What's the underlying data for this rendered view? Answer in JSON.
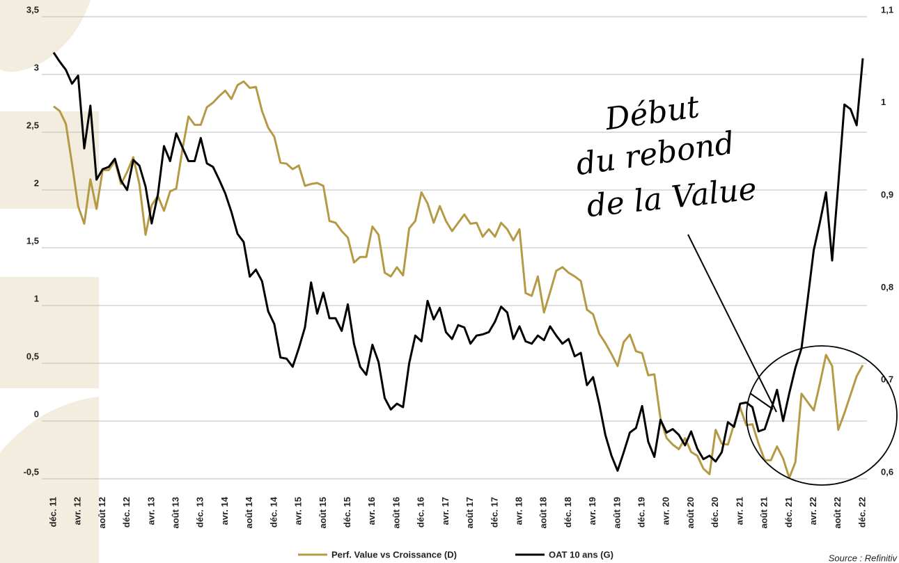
{
  "chart_data": {
    "type": "line",
    "categories": [
      "déc. 11",
      null,
      null,
      null,
      "avr. 12",
      null,
      null,
      null,
      "août 12",
      null,
      null,
      null,
      "déc. 12",
      null,
      null,
      null,
      "avr. 13",
      null,
      null,
      null,
      "août 13",
      null,
      null,
      null,
      "déc. 13",
      null,
      null,
      null,
      "avr. 14",
      null,
      null,
      null,
      "août 14",
      null,
      null,
      null,
      "déc. 14",
      null,
      null,
      null,
      "avr. 15",
      null,
      null,
      null,
      "août 15",
      null,
      null,
      null,
      "déc. 15",
      null,
      null,
      null,
      "avr. 16",
      null,
      null,
      null,
      "août 16",
      null,
      null,
      null,
      "déc. 16",
      null,
      null,
      null,
      "avr. 17",
      null,
      null,
      null,
      "août 17",
      null,
      null,
      null,
      "déc. 17",
      null,
      null,
      null,
      "avr. 18",
      null,
      null,
      null,
      "août 18",
      null,
      null,
      null,
      "déc. 18",
      null,
      null,
      null,
      "avr. 19",
      null,
      null,
      null,
      "août 19",
      null,
      null,
      null,
      "déc. 19",
      null,
      null,
      null,
      "avr. 20",
      null,
      null,
      null,
      "août 20",
      null,
      null,
      null,
      "déc. 20",
      null,
      null,
      null,
      "avr. 21",
      null,
      null,
      null,
      "août 21",
      null,
      null,
      null,
      "déc. 21",
      null,
      null,
      null,
      "avr. 22",
      null,
      null,
      null,
      "août 22",
      null,
      null,
      null,
      "déc. 22"
    ],
    "series": [
      {
        "name": "Perf. Value vs Croissance (D)",
        "color": "#b59a45",
        "axis": "y2",
        "values": [
          1.003,
          0.998,
          0.984,
          0.941,
          0.895,
          0.876,
          0.924,
          0.892,
          0.934,
          0.934,
          0.944,
          0.919,
          0.932,
          0.948,
          0.919,
          0.864,
          0.896,
          0.906,
          0.89,
          0.911,
          0.914,
          0.956,
          0.992,
          0.983,
          0.983,
          1.002,
          1.007,
          1.014,
          1.02,
          1.011,
          1.026,
          1.03,
          1.023,
          1.024,
          0.998,
          0.98,
          0.97,
          0.942,
          0.941,
          0.935,
          0.939,
          0.917,
          0.919,
          0.92,
          0.917,
          0.879,
          0.877,
          0.868,
          0.861,
          0.834,
          0.84,
          0.84,
          0.873,
          0.864,
          0.823,
          0.819,
          0.829,
          0.82,
          0.871,
          0.879,
          0.91,
          0.898,
          0.877,
          0.895,
          0.879,
          0.868,
          0.877,
          0.886,
          0.876,
          0.877,
          0.862,
          0.87,
          0.862,
          0.877,
          0.87,
          0.858,
          0.87,
          0.801,
          0.798,
          0.819,
          0.78,
          0.802,
          0.825,
          0.829,
          0.823,
          0.819,
          0.814,
          0.783,
          0.778,
          0.757,
          0.747,
          0.735,
          0.722,
          0.748,
          0.756,
          0.738,
          0.736,
          0.712,
          0.713,
          0.665,
          0.644,
          0.637,
          0.632,
          0.644,
          0.629,
          0.625,
          0.611,
          0.605,
          0.653,
          0.638,
          0.637,
          0.659,
          0.677,
          0.658,
          0.659,
          0.638,
          0.62,
          0.62,
          0.635,
          0.622,
          0.601,
          0.618,
          0.692,
          0.683,
          0.674,
          0.703,
          0.734,
          0.722,
          0.653,
          0.671,
          0.691,
          0.711,
          0.723
        ]
      },
      {
        "name": "OAT 10 ans (G)",
        "color": "#000000",
        "values": [
          3.19,
          3.11,
          3.04,
          2.92,
          2.99,
          2.36,
          2.73,
          2.09,
          2.18,
          2.2,
          2.27,
          2.08,
          2.0,
          2.26,
          2.21,
          2.03,
          1.71,
          1.96,
          2.38,
          2.25,
          2.49,
          2.37,
          2.25,
          2.25,
          2.45,
          2.23,
          2.2,
          2.09,
          1.97,
          1.81,
          1.62,
          1.55,
          1.25,
          1.31,
          1.21,
          0.95,
          0.84,
          0.55,
          0.54,
          0.47,
          0.63,
          0.81,
          1.2,
          0.93,
          1.11,
          0.89,
          0.89,
          0.78,
          1.01,
          0.67,
          0.47,
          0.4,
          0.66,
          0.51,
          0.2,
          0.1,
          0.15,
          0.12,
          0.5,
          0.74,
          0.69,
          1.04,
          0.88,
          0.98,
          0.77,
          0.71,
          0.83,
          0.81,
          0.67,
          0.74,
          0.75,
          0.77,
          0.86,
          0.99,
          0.94,
          0.71,
          0.82,
          0.69,
          0.67,
          0.74,
          0.7,
          0.82,
          0.74,
          0.67,
          0.71,
          0.56,
          0.59,
          0.31,
          0.38,
          0.15,
          -0.12,
          -0.3,
          -0.43,
          -0.27,
          -0.1,
          -0.06,
          0.13,
          -0.18,
          -0.31,
          0.01,
          -0.1,
          -0.07,
          -0.12,
          -0.21,
          -0.09,
          -0.24,
          -0.33,
          -0.3,
          -0.35,
          -0.27,
          -0.01,
          -0.05,
          0.15,
          0.16,
          0.12,
          -0.09,
          -0.07,
          0.09,
          0.27,
          0.0,
          0.24,
          0.46,
          0.63,
          1.05,
          1.48,
          1.72,
          1.98,
          1.39,
          2.05,
          2.74,
          2.7,
          2.56,
          3.14
        ]
      }
    ],
    "ylim": [
      -0.5,
      3.5
    ],
    "yticks": [
      {
        "value": -0.5,
        "label": "-0,5"
      },
      0,
      {
        "value": 0.5,
        "label": "0,5"
      },
      1,
      {
        "value": 1.5,
        "label": "1,5"
      },
      2,
      {
        "value": 2.5,
        "label": "2,5"
      },
      3,
      {
        "value": 3.5,
        "label": "3,5"
      }
    ],
    "y2lim": [
      0.6,
      1.1
    ],
    "y2ticks": [
      {
        "value": 0.6,
        "label": "0,6"
      },
      {
        "value": 0.7,
        "label": "0,7"
      },
      {
        "value": 0.8,
        "label": "0,8"
      },
      {
        "value": 0.9,
        "label": "0,9"
      },
      1,
      {
        "value": 1.1,
        "label": "1,1"
      }
    ],
    "grid": true,
    "legend": "bottom",
    "annotation": [
      "Début",
      "du rebond",
      "de la Value"
    ],
    "source": "Source : Refinitiv"
  }
}
